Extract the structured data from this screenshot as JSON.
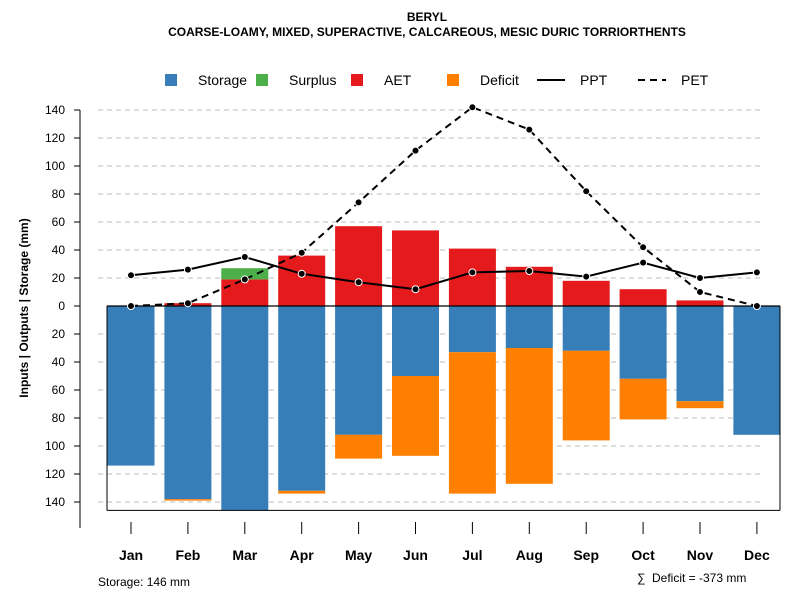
{
  "chart_data": {
    "type": "bar",
    "title": "BERYL",
    "subtitle": "COARSE-LOAMY, MIXED, SUPERACTIVE, CALCAREOUS, MESIC DURIC TORRIORTHENTS",
    "ylabel": "Inputs | Outputs | Storage    (mm)",
    "categories": [
      "Jan",
      "Feb",
      "Mar",
      "Apr",
      "May",
      "Jun",
      "Jul",
      "Aug",
      "Sep",
      "Oct",
      "Nov",
      "Dec"
    ],
    "ylim": [
      -146,
      146
    ],
    "yticks": [
      -140,
      -120,
      -100,
      -80,
      -60,
      -40,
      -20,
      0,
      20,
      40,
      60,
      80,
      100,
      120,
      140
    ],
    "ytick_labels": [
      "140",
      "120",
      "100",
      "80",
      "60",
      "40",
      "20",
      "0",
      "20",
      "40",
      "60",
      "80",
      "100",
      "120",
      "140"
    ],
    "legend": [
      {
        "label": "Storage",
        "kind": "box",
        "color": "#377eb8"
      },
      {
        "label": "Surplus",
        "kind": "box",
        "color": "#4daf4a"
      },
      {
        "label": "AET",
        "kind": "box",
        "color": "#e41a1c"
      },
      {
        "label": "Deficit",
        "kind": "box",
        "color": "#ff7f00"
      },
      {
        "label": "PPT",
        "kind": "solid",
        "color": "#000000"
      },
      {
        "label": "PET",
        "kind": "dashed",
        "color": "#000000"
      }
    ],
    "series": [
      {
        "name": "AET",
        "color": "#e41a1c",
        "values": [
          0,
          2,
          19,
          36,
          57,
          54,
          41,
          28,
          18,
          12,
          4,
          0
        ]
      },
      {
        "name": "Surplus",
        "color": "#4daf4a",
        "values": [
          0,
          0,
          8,
          0,
          0,
          0,
          0,
          0,
          0,
          0,
          0,
          0
        ]
      },
      {
        "name": "Storage",
        "color": "#377eb8",
        "values": [
          -114,
          -138,
          -146,
          -132,
          -92,
          -50,
          -33,
          -30,
          -32,
          -52,
          -68,
          -92
        ]
      },
      {
        "name": "Deficit",
        "color": "#ff7f00",
        "values": [
          0,
          -1,
          0,
          -2,
          -17,
          -57,
          -101,
          -97,
          -64,
          -29,
          -5,
          0
        ]
      },
      {
        "name": "PPT",
        "color": "#000000",
        "values": [
          22,
          26,
          35,
          23,
          17,
          12,
          24,
          25,
          21,
          31,
          20,
          24
        ]
      },
      {
        "name": "PET",
        "color": "#000000",
        "values": [
          0,
          2,
          19,
          38,
          74,
          111,
          142,
          126,
          82,
          42,
          10,
          0
        ]
      }
    ],
    "annotations": {
      "storage": "Storage: 146 mm",
      "deficit_symbol": "∑",
      "deficit": "Deficit = -373 mm"
    },
    "grid": true
  }
}
